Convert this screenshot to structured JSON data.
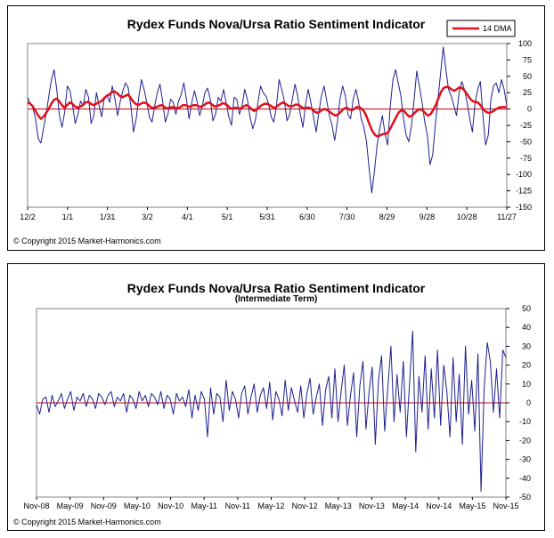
{
  "chart_data": [
    {
      "type": "line",
      "title": "Rydex Funds Nova/Ursa Ratio Sentiment Indicator",
      "subtitle": "",
      "copyright": "© Copyright 2015 Market-Harmonics.com",
      "legend": {
        "position": "top-right",
        "entries": [
          "14 DMA"
        ]
      },
      "x_tick_labels": [
        "12/2",
        "1/1",
        "1/31",
        "3/2",
        "4/1",
        "5/1",
        "5/31",
        "6/30",
        "7/30",
        "8/29",
        "9/28",
        "10/28",
        "11/27"
      ],
      "y_tick_labels": [
        "100",
        "75",
        "50",
        "25",
        "0",
        "-25",
        "-50",
        "-75",
        "-100",
        "-125",
        "-150"
      ],
      "y_ticks": [
        100,
        75,
        50,
        25,
        0,
        -25,
        -50,
        -75,
        -100,
        -125,
        -150
      ],
      "ylim": [
        -150,
        100
      ],
      "zero_line": 0,
      "series": [
        {
          "name": "Nova/Ursa Ratio",
          "color": "#1f1f8f",
          "values": [
            18,
            8,
            2,
            -15,
            -45,
            -52,
            -30,
            -8,
            20,
            45,
            60,
            30,
            -10,
            -28,
            -5,
            35,
            28,
            5,
            -22,
            -8,
            12,
            5,
            30,
            18,
            -22,
            -10,
            25,
            5,
            -12,
            18,
            22,
            10,
            35,
            15,
            -10,
            12,
            28,
            40,
            32,
            5,
            -35,
            -15,
            18,
            45,
            30,
            10,
            -12,
            -20,
            5,
            25,
            38,
            12,
            -20,
            -8,
            15,
            10,
            -8,
            12,
            22,
            40,
            15,
            -15,
            10,
            28,
            12,
            -10,
            5,
            25,
            32,
            15,
            -18,
            -8,
            18,
            12,
            30,
            10,
            -12,
            -25,
            18,
            15,
            -8,
            5,
            30,
            15,
            -12,
            -30,
            -18,
            10,
            35,
            25,
            20,
            8,
            -12,
            -20,
            5,
            45,
            30,
            12,
            -18,
            -8,
            15,
            38,
            20,
            -8,
            -28,
            8,
            30,
            10,
            -12,
            -35,
            -5,
            20,
            35,
            12,
            -10,
            -25,
            -48,
            -20,
            15,
            35,
            20,
            -8,
            -15,
            15,
            30,
            12,
            -15,
            -28,
            -50,
            -90,
            -128,
            -95,
            -55,
            -30,
            -10,
            -38,
            -55,
            5,
            45,
            60,
            40,
            20,
            -15,
            -40,
            -50,
            -25,
            15,
            58,
            35,
            10,
            -20,
            -40,
            -85,
            -70,
            -25,
            15,
            55,
            95,
            60,
            30,
            20,
            5,
            -10,
            25,
            42,
            30,
            10,
            -15,
            -35,
            8,
            30,
            42,
            -10,
            -55,
            -40,
            15,
            35,
            40,
            25,
            45,
            30,
            5
          ]
        },
        {
          "name": "14 DMA",
          "color": "#e0101c",
          "values": [
            10,
            8,
            4,
            -3,
            -10,
            -15,
            -12,
            -6,
            0,
            8,
            14,
            16,
            12,
            6,
            2,
            6,
            10,
            8,
            4,
            2,
            4,
            6,
            10,
            11,
            8,
            6,
            8,
            10,
            12,
            16,
            20,
            22,
            26,
            27,
            24,
            20,
            18,
            20,
            22,
            18,
            12,
            8,
            6,
            8,
            10,
            9,
            6,
            2,
            2,
            3,
            5,
            6,
            3,
            1,
            2,
            3,
            2,
            1,
            3,
            6,
            6,
            4,
            4,
            6,
            6,
            4,
            4,
            6,
            9,
            10,
            7,
            4,
            5,
            6,
            9,
            8,
            5,
            1,
            1,
            2,
            1,
            1,
            4,
            6,
            4,
            0,
            -3,
            -1,
            3,
            6,
            8,
            8,
            6,
            3,
            2,
            5,
            8,
            10,
            8,
            5,
            4,
            5,
            7,
            6,
            3,
            1,
            2,
            2,
            0,
            -4,
            -6,
            -4,
            -1,
            0,
            -2,
            -5,
            -8,
            -10,
            -8,
            -4,
            0,
            2,
            0,
            -2,
            0,
            3,
            3,
            0,
            -5,
            -14,
            -25,
            -34,
            -40,
            -42,
            -40,
            -38,
            -38,
            -35,
            -28,
            -20,
            -12,
            -5,
            -2,
            -3,
            -8,
            -12,
            -10,
            -6,
            -2,
            0,
            -2,
            -6,
            -10,
            -8,
            -2,
            6,
            16,
            26,
            32,
            34,
            33,
            30,
            28,
            30,
            33,
            32,
            28,
            22,
            16,
            12,
            11,
            10,
            6,
            0,
            -4,
            -6,
            -5,
            -3,
            0,
            2,
            3,
            3,
            3
          ]
        }
      ]
    },
    {
      "type": "line",
      "title": "Rydex Funds Nova/Ursa Ratio Sentiment Indicator",
      "subtitle": "(Intermediate Term)",
      "copyright": "© Copyright 2015 Market-Harmonics.com",
      "x_tick_labels": [
        "Nov-08",
        "May-09",
        "Nov-09",
        "May-10",
        "Nov-10",
        "May-11",
        "Nov-11",
        "May-12",
        "Nov-12",
        "May-13",
        "Nov-13",
        "May-14",
        "Nov-14",
        "May-15",
        "Nov-15"
      ],
      "y_tick_labels": [
        "50",
        "40",
        "30",
        "20",
        "10",
        "0",
        "-10",
        "-20",
        "-30",
        "-40",
        "-50"
      ],
      "y_ticks": [
        50,
        40,
        30,
        20,
        10,
        0,
        -10,
        -20,
        -30,
        -40,
        -50
      ],
      "ylim": [
        -50,
        50
      ],
      "zero_line": 0,
      "series": [
        {
          "name": "Nova/Ursa Ratio (Intermediate Term)",
          "color": "#1f1f8f",
          "values": [
            -1,
            -6,
            2,
            3,
            -5,
            4,
            -2,
            1,
            5,
            -3,
            2,
            6,
            -4,
            3,
            1,
            5,
            -2,
            4,
            2,
            -3,
            5,
            3,
            -1,
            4,
            6,
            -2,
            3,
            1,
            5,
            -5,
            4,
            2,
            -3,
            6,
            1,
            4,
            -2,
            5,
            3,
            -1,
            6,
            -3,
            4,
            2,
            -6,
            5,
            1,
            3,
            -2,
            7,
            -8,
            4,
            -4,
            6,
            2,
            -18,
            8,
            -6,
            5,
            3,
            -10,
            12,
            -4,
            6,
            2,
            -8,
            5,
            9,
            -6,
            3,
            10,
            -5,
            4,
            8,
            -3,
            11,
            -9,
            6,
            2,
            -7,
            12,
            -4,
            8,
            1,
            -5,
            9,
            -8,
            5,
            13,
            -6,
            3,
            10,
            -12,
            7,
            14,
            -8,
            18,
            -10,
            6,
            20,
            -12,
            4,
            16,
            -18,
            9,
            22,
            -14,
            6,
            19,
            -22,
            12,
            25,
            -15,
            8,
            30,
            -10,
            15,
            -5,
            22,
            -18,
            10,
            38,
            -26,
            14,
            -5,
            25,
            -14,
            18,
            -8,
            28,
            -12,
            20,
            6,
            -18,
            24,
            -10,
            15,
            -22,
            30,
            -6,
            12,
            -15,
            26,
            -47,
            8,
            32,
            22,
            -5,
            18,
            -8,
            28,
            24
          ]
        }
      ]
    }
  ]
}
